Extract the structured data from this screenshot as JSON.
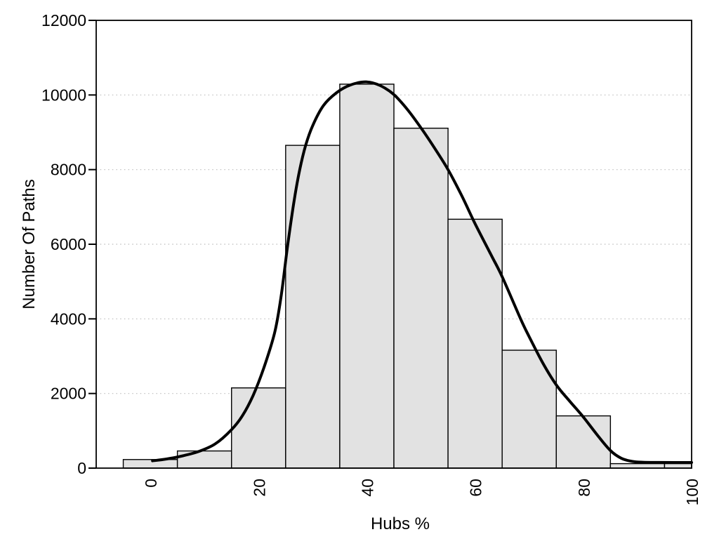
{
  "chart_data": {
    "type": "bar",
    "variant": "histogram-with-density-curve",
    "title": "",
    "xlabel": "Hubs %",
    "ylabel": "Number Of Paths",
    "xlim": [
      -10,
      100
    ],
    "ylim": [
      0,
      12000
    ],
    "x_ticks": [
      0,
      20,
      40,
      60,
      80,
      100
    ],
    "x_tick_labels": [
      "0",
      "20",
      "40",
      "60",
      "80",
      "100"
    ],
    "x_tick_label_rotation_deg": -90,
    "y_ticks": [
      0,
      2000,
      4000,
      6000,
      8000,
      10000,
      12000
    ],
    "y_tick_labels": [
      "0",
      "2000",
      "4000",
      "6000",
      "8000",
      "10000",
      "12000"
    ],
    "grid": {
      "horizontal_dotted": true,
      "vertical": false,
      "gridline_values": [
        2000,
        4000,
        6000,
        8000,
        10000
      ]
    },
    "legend_position": "none",
    "histogram": {
      "bin_width": 10,
      "bin_edges": [
        -5,
        5,
        15,
        25,
        35,
        45,
        55,
        65,
        75,
        85,
        95,
        105
      ],
      "bin_centers": [
        0,
        10,
        20,
        30,
        40,
        50,
        60,
        70,
        80,
        90,
        100
      ],
      "counts": [
        230,
        460,
        2150,
        8650,
        10290,
        9110,
        6670,
        3160,
        1400,
        120,
        120
      ]
    },
    "density_curve": {
      "points": [
        [
          0.4,
          195
        ],
        [
          3,
          245
        ],
        [
          6,
          330
        ],
        [
          9,
          450
        ],
        [
          12,
          650
        ],
        [
          15,
          1030
        ],
        [
          17,
          1400
        ],
        [
          19,
          1950
        ],
        [
          21,
          2700
        ],
        [
          23,
          3650
        ],
        [
          24.2,
          4650
        ],
        [
          25.4,
          6000
        ],
        [
          26.6,
          7200
        ],
        [
          27.6,
          8000
        ],
        [
          28.7,
          8650
        ],
        [
          30,
          9180
        ],
        [
          32,
          9720
        ],
        [
          34.4,
          10060
        ],
        [
          37,
          10270
        ],
        [
          40,
          10350
        ],
        [
          42.5,
          10250
        ],
        [
          45,
          10010
        ],
        [
          47.5,
          9610
        ],
        [
          50,
          9120
        ],
        [
          52.5,
          8580
        ],
        [
          55,
          8000
        ],
        [
          57.5,
          7310
        ],
        [
          60,
          6550
        ],
        [
          63,
          5700
        ],
        [
          65,
          5130
        ],
        [
          68.4,
          4000
        ],
        [
          70,
          3520
        ],
        [
          72.5,
          2820
        ],
        [
          75,
          2230
        ],
        [
          77.5,
          1790
        ],
        [
          80,
          1370
        ],
        [
          82.5,
          900
        ],
        [
          85,
          470
        ],
        [
          87,
          265
        ],
        [
          89,
          180
        ],
        [
          91,
          158
        ],
        [
          94,
          152
        ],
        [
          100,
          150
        ]
      ]
    },
    "colors": {
      "background": "#ffffff",
      "bar_fill": "#e2e2e2",
      "bar_stroke": "#000000",
      "curve_stroke": "#000000",
      "grid_dots": "#bbbbbb",
      "frame": "#000000",
      "text": "#000000"
    }
  }
}
